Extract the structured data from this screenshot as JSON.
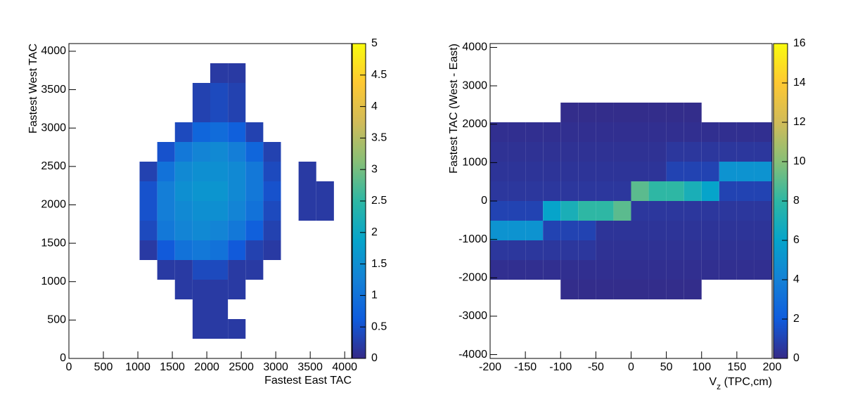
{
  "chart_data": [
    {
      "type": "heatmap2d",
      "xlabel": "Fastest East TAC",
      "ylabel": "Fastest West TAC",
      "xlim": [
        0,
        4100
      ],
      "ylim": [
        0,
        4100
      ],
      "zlim": [
        0,
        5
      ],
      "xticks": [
        0,
        500,
        1000,
        1500,
        2000,
        2500,
        3000,
        3500,
        4000
      ],
      "yticks": [
        0,
        500,
        1000,
        1500,
        2000,
        2500,
        3000,
        3500,
        4000
      ],
      "zticks": [
        0,
        0.5,
        1,
        1.5,
        2,
        2.5,
        3,
        3.5,
        4,
        4.5,
        5
      ],
      "colors": [
        "#352a87",
        "#0f5cdd",
        "#1481d6",
        "#06a4ca",
        "#2eb7a4",
        "#87bf77",
        "#d1bb59",
        "#fec832",
        "#f9fb0e"
      ],
      "xbins": [
        0,
        256.25,
        512.5,
        768.75,
        1025,
        1281.25,
        1537.5,
        1793.75,
        2050,
        2306.25,
        2562.5,
        2818.75,
        3075,
        3331.25,
        3587.5,
        3843.75,
        4100
      ],
      "ybins": [
        0,
        256.25,
        512.5,
        768.75,
        1025,
        1281.25,
        1537.5,
        1793.75,
        2050,
        2306.25,
        2562.5,
        2818.75,
        3075,
        3331.25,
        3587.5,
        3843.75,
        4100
      ],
      "values": [
        [
          0,
          0,
          0,
          0,
          0,
          0,
          0,
          0,
          0,
          0,
          0,
          0,
          0,
          0,
          0,
          0
        ],
        [
          0,
          0,
          0,
          0,
          0,
          0,
          0,
          0.2,
          0.2,
          0.2,
          0,
          0,
          0,
          0,
          0,
          0
        ],
        [
          0,
          0,
          0,
          0,
          0,
          0,
          0,
          0.2,
          0.2,
          0,
          0,
          0,
          0,
          0,
          0,
          0
        ],
        [
          0,
          0,
          0,
          0,
          0,
          0,
          0.2,
          0.2,
          0.2,
          0.2,
          0,
          0,
          0,
          0,
          0,
          0
        ],
        [
          0,
          0,
          0,
          0,
          0,
          0.2,
          0.2,
          0.4,
          0.4,
          0.2,
          0.2,
          0,
          0,
          0,
          0,
          0
        ],
        [
          0,
          0,
          0,
          0,
          0.2,
          0.6,
          1,
          1.1,
          1,
          0.6,
          0.3,
          0.2,
          0,
          0,
          0,
          0
        ],
        [
          0,
          0,
          0,
          0,
          0.4,
          1.1,
          1.3,
          1.4,
          1.3,
          1.1,
          0.7,
          0.3,
          0,
          0,
          0,
          0
        ],
        [
          0,
          0,
          0,
          0,
          0.5,
          1.2,
          1.4,
          1.5,
          1.5,
          1.3,
          1,
          0.4,
          0,
          0.2,
          0.2,
          0
        ],
        [
          0,
          0,
          0,
          0,
          0.5,
          1.2,
          1.5,
          1.6,
          1.6,
          1.4,
          1.1,
          0.5,
          0,
          0.2,
          0.2,
          0
        ],
        [
          0,
          0,
          0,
          0,
          0.3,
          1,
          1.4,
          1.5,
          1.5,
          1.4,
          1.1,
          0.4,
          0,
          0.2,
          0,
          0
        ],
        [
          0,
          0,
          0,
          0,
          0,
          0.5,
          1.1,
          1.3,
          1.4,
          1.2,
          0.8,
          0.3,
          0,
          0,
          0,
          0
        ],
        [
          0,
          0,
          0,
          0,
          0,
          0,
          0.4,
          0.8,
          0.9,
          0.7,
          0.3,
          0,
          0,
          0,
          0,
          0
        ],
        [
          0,
          0,
          0,
          0,
          0,
          0,
          0,
          0.3,
          0.4,
          0.3,
          0,
          0,
          0,
          0,
          0,
          0
        ],
        [
          0,
          0,
          0,
          0,
          0,
          0,
          0,
          0.3,
          0.4,
          0.3,
          0,
          0,
          0,
          0,
          0,
          0
        ],
        [
          0,
          0,
          0,
          0,
          0,
          0,
          0,
          0,
          0.2,
          0.2,
          0,
          0,
          0,
          0,
          0,
          0
        ],
        [
          0,
          0,
          0,
          0,
          0,
          0,
          0,
          0,
          0,
          0,
          0,
          0,
          0,
          0,
          0,
          0
        ]
      ]
    },
    {
      "type": "heatmap2d",
      "xlabel": [
        "V",
        "z",
        " (TPC,cm)"
      ],
      "ylabel": "Fastest TAC (West - East)",
      "xlim": [
        -200,
        200
      ],
      "ylim": [
        -4100,
        4100
      ],
      "zlim": [
        0,
        16
      ],
      "xticks": [
        -200,
        -150,
        -100,
        -50,
        0,
        50,
        100,
        150,
        200
      ],
      "yticks": [
        -4000,
        -3000,
        -2000,
        -1000,
        0,
        1000,
        2000,
        3000,
        4000
      ],
      "zticks": [
        0,
        2,
        4,
        6,
        8,
        10,
        12,
        14,
        16
      ],
      "colors": [
        "#352a87",
        "#0f5cdd",
        "#1481d6",
        "#06a4ca",
        "#2eb7a4",
        "#87bf77",
        "#d1bb59",
        "#fec832",
        "#f9fb0e"
      ],
      "xbins": [
        -200,
        -175,
        -150,
        -125,
        -100,
        -75,
        -50,
        -25,
        0,
        25,
        50,
        75,
        100,
        125,
        150,
        175,
        200
      ],
      "ybins": [
        -4100,
        -3587.5,
        -3075,
        -2562.5,
        -2050,
        -1537.5,
        -1025,
        -512.5,
        0,
        512.5,
        1025,
        1537.5,
        2050,
        2562.5,
        3075,
        3587.5,
        4100
      ],
      "values": [
        [
          0,
          0,
          0,
          0,
          0,
          0,
          0,
          0,
          0,
          0,
          0,
          0,
          0,
          0,
          0,
          0
        ],
        [
          0,
          0,
          0,
          0,
          0,
          0,
          0,
          0,
          0,
          0,
          0,
          0,
          0,
          0,
          0,
          0
        ],
        [
          0,
          0,
          0,
          0,
          0,
          0,
          0,
          0,
          0,
          0,
          0,
          0,
          0,
          0,
          0,
          0
        ],
        [
          0,
          0,
          0,
          0,
          0.1,
          0.1,
          0.1,
          0.1,
          0.1,
          0.1,
          0.1,
          0.1,
          0,
          0,
          0,
          0
        ],
        [
          0.2,
          0.2,
          0.2,
          0.2,
          0.2,
          0.2,
          0.2,
          0.2,
          0.2,
          0.2,
          0.2,
          0.2,
          0.2,
          0.2,
          0.2,
          0.2
        ],
        [
          0.5,
          0.5,
          0.5,
          0.5,
          0.5,
          0.5,
          0.3,
          0.3,
          0.3,
          0.3,
          0.3,
          0.3,
          0.3,
          0.3,
          0.3,
          0.3
        ],
        [
          5,
          5,
          5,
          1,
          1,
          1,
          0.4,
          0.4,
          0.4,
          0.4,
          0.4,
          0.4,
          0.4,
          0.4,
          0.4,
          0.4
        ],
        [
          1,
          1,
          1,
          6,
          7,
          8,
          8,
          9,
          0.5,
          0.5,
          0.5,
          0.5,
          0.5,
          0.5,
          0.5,
          0.5
        ],
        [
          0.5,
          0.5,
          0.5,
          0.5,
          0.5,
          0.5,
          0.5,
          0.5,
          9,
          8,
          8,
          7,
          6,
          1,
          1,
          1
        ],
        [
          0.4,
          0.4,
          0.4,
          0.4,
          0.4,
          0.4,
          0.4,
          0.4,
          0.4,
          0.4,
          1,
          1,
          1,
          5,
          5,
          5
        ],
        [
          0.3,
          0.3,
          0.3,
          0.3,
          0.3,
          0.3,
          0.3,
          0.3,
          0.3,
          0.3,
          0.5,
          0.5,
          0.5,
          0.5,
          0.5,
          0.5
        ],
        [
          0.2,
          0.2,
          0.2,
          0.2,
          0.2,
          0.2,
          0.2,
          0.2,
          0.2,
          0.2,
          0.2,
          0.2,
          0.2,
          0.2,
          0.2,
          0.2
        ],
        [
          0,
          0,
          0,
          0,
          0.1,
          0.1,
          0.1,
          0.1,
          0.1,
          0.1,
          0.1,
          0.1,
          0,
          0,
          0,
          0
        ],
        [
          0,
          0,
          0,
          0,
          0,
          0,
          0,
          0,
          0,
          0,
          0,
          0,
          0,
          0,
          0,
          0
        ],
        [
          0,
          0,
          0,
          0,
          0,
          0,
          0,
          0,
          0,
          0,
          0,
          0,
          0,
          0,
          0,
          0
        ],
        [
          0,
          0,
          0,
          0,
          0,
          0,
          0,
          0,
          0,
          0,
          0,
          0,
          0,
          0,
          0,
          0
        ]
      ]
    }
  ]
}
